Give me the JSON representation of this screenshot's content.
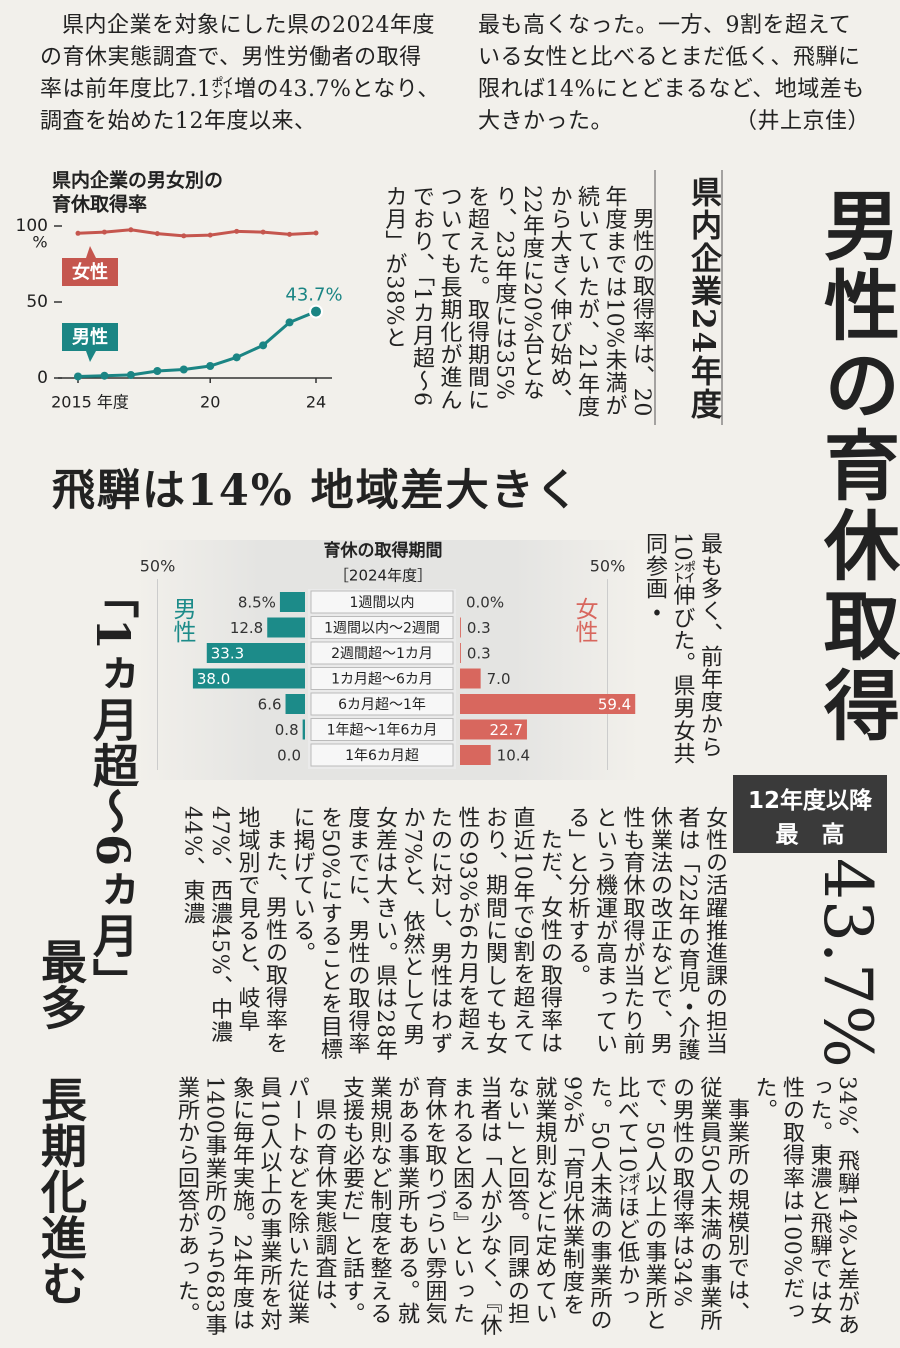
{
  "intro": {
    "left": "県内企業を対象にした県の2024年度の育休実態調査で、男性労働者の取得率は前年度比7.1㌽増の43.7%となり、調査を始めた12年度以来、",
    "right": "最も高くなった。一方、9割を超えている女性と比べるとまだ低く、飛騨に限れば14%にとどまるなど、地域差も大きかった。",
    "byline": "（井上京佳）"
  },
  "headline": "男性の育休取得",
  "badge": [
    "12年度以降",
    "最　高"
  ],
  "big_number": "43.7%",
  "subhead": "県内企業24年度",
  "headline2": "飛騨は14% 地域差大きく",
  "headline3": [
    "「1ヵ月超〜6ヵ月」",
    "最多　長期化進む"
  ],
  "body": {
    "a": "男性の取得率は、20年度までは10%未満が続いていたが、21年度から大きく伸び始め、22年度に20%台となり、23年度には35%を超えた。取得期間についても長期化が進んでおり、「1カ月超〜6カ月」が38%と",
    "b": "最も多く、前年度から10㌽伸びた。県男女共同参画・",
    "c": [
      "女性の活躍推進課の担当者は「22年の育児・介護休業法の改正などで、男性も育休取得が当たり前という機運が高まっている」と分析する。",
      "ただ、女性の取得率は直近10年で9割を超えており、期間に関しても女性の93%が6カ月を超えたのに対し、男性はわずか7%と、依然として男女差は大きい。県は28年度までに、男性の取得率を50%にすることを目標に掲げている。",
      "また、男性の取得率を地域別で見ると、岐阜47%、西濃45%、中濃44%、東濃"
    ],
    "d": [
      "34%、飛騨14%と差があった。東濃と飛騨では女性の取得率は100%だった。",
      "事業所の規模別では、従業員50人未満の事業所の男性の取得率は34%で、50人以上の事業所と比べて10㌽ほど低かった。50人未満の事業所の9%が「育児休業制度を就業規則などに定めていない」と回答。同課の担当者は「人が少なく、『休まれると困る』といった育休を取りづらい雰囲気がある事業所もある。就業規則など制度を整える支援も必要だ」と話す。",
      "県の育休実態調査は、パートなどを除いた従業員10人以上の事業所を対象に毎年実施。24年度は1400事業所のうち683事業所から回答があった。"
    ]
  },
  "chart_data": [
    {
      "type": "line",
      "title": [
        "県内企業の男女別の",
        "育休取得率"
      ],
      "x": [
        2015,
        2016,
        2017,
        2018,
        2019,
        2020,
        2021,
        2022,
        2023,
        2024
      ],
      "xlim": [
        2015,
        2024
      ],
      "xticks": [
        {
          "value": 2015,
          "label": "2015 年度"
        },
        {
          "value": 2020,
          "label": "20"
        },
        {
          "value": 2024,
          "label": "24"
        }
      ],
      "ylim": [
        0,
        100
      ],
      "yticks": [
        0,
        50,
        100
      ],
      "y_unit": "%",
      "series": [
        {
          "name": "女性",
          "color": "#c5564e",
          "values": [
            95.2,
            96.0,
            97.5,
            95.0,
            93.5,
            94.0,
            96.5,
            96.0,
            94.5,
            95.4
          ]
        },
        {
          "name": "男性",
          "color": "#1b8584",
          "values": [
            1.0,
            1.5,
            2.0,
            4.6,
            5.6,
            7.9,
            13.6,
            21.5,
            36.6,
            43.7
          ],
          "value_labels": [
            null,
            null,
            null,
            null,
            null,
            null,
            null,
            null,
            null,
            "43.7%"
          ]
        }
      ]
    },
    {
      "type": "butterfly_bar",
      "title": "育休の取得期間",
      "subtitle": "［2024年度］",
      "categories": [
        "1週間以内",
        "1週間以内〜2週間",
        "2週間超〜1カ月",
        "1カ月超〜6カ月",
        "6カ月超〜1年",
        "1年超〜1年6カ月",
        "1年6カ月超"
      ],
      "xlim": [
        0,
        50
      ],
      "xticks": [
        {
          "value": 50,
          "label": "50%"
        }
      ],
      "series": [
        {
          "name": "男性",
          "color": "#1c8b89",
          "values": [
            8.5,
            12.8,
            33.3,
            38.0,
            6.6,
            0.8,
            0.0
          ],
          "value_labels": [
            "8.5%",
            "12.8",
            "33.3",
            "38.0",
            "6.6",
            "0.8",
            "0.0"
          ]
        },
        {
          "name": "女性",
          "color": "#d8675e",
          "values": [
            0.0,
            0.3,
            0.3,
            7.0,
            59.4,
            22.7,
            10.4
          ],
          "value_labels": [
            "0.0%",
            "0.3",
            "0.3",
            "7.0",
            "59.4",
            "22.7",
            "10.4"
          ]
        }
      ]
    }
  ]
}
